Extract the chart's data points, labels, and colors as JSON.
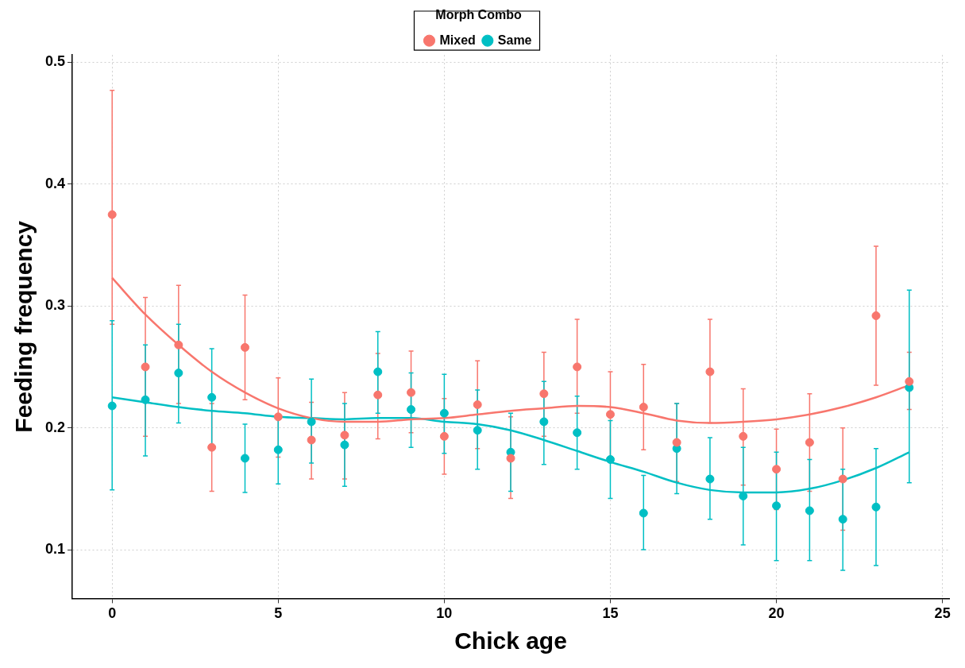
{
  "chart_data": {
    "type": "scatter",
    "xlabel": "Chick age",
    "ylabel": "Feeding frequency",
    "legend_title": "Morph Combo",
    "legend": "top",
    "grid": true,
    "marker": "circle",
    "line_style": "solid",
    "x": [
      0,
      1,
      2,
      3,
      4,
      5,
      6,
      7,
      8,
      9,
      10,
      11,
      12,
      13,
      14,
      15,
      16,
      17,
      18,
      19,
      20,
      21,
      22,
      23,
      24
    ],
    "xlim": [
      -1.2,
      25.2
    ],
    "xticks": [
      0,
      5,
      10,
      15,
      20,
      25
    ],
    "ylim": [
      0.06,
      0.506
    ],
    "yticks": [
      0.1,
      0.2,
      0.3,
      0.4,
      0.5
    ],
    "series": [
      {
        "name": "Mixed",
        "color": "#f8766d",
        "values": [
          0.375,
          0.25,
          0.268,
          0.184,
          0.266,
          0.209,
          0.19,
          0.194,
          0.227,
          0.229,
          0.193,
          0.219,
          0.175,
          0.228,
          0.25,
          0.211,
          0.217,
          0.188,
          0.246,
          0.193,
          0.166,
          0.188,
          0.158,
          0.292,
          0.238
        ],
        "errors": [
          [
            0.285,
            0.477
          ],
          [
            0.193,
            0.307
          ],
          [
            0.22,
            0.317
          ],
          [
            0.148,
            0.22
          ],
          [
            0.223,
            0.309
          ],
          [
            0.176,
            0.241
          ],
          [
            0.158,
            0.221
          ],
          [
            0.158,
            0.229
          ],
          [
            0.191,
            0.261
          ],
          [
            0.196,
            0.263
          ],
          [
            0.162,
            0.224
          ],
          [
            0.183,
            0.255
          ],
          [
            0.142,
            0.209
          ],
          [
            0.193,
            0.262
          ],
          [
            0.212,
            0.289
          ],
          [
            0.175,
            0.246
          ],
          [
            0.182,
            0.252
          ],
          [
            0.156,
            0.22
          ],
          [
            0.204,
            0.289
          ],
          [
            0.153,
            0.232
          ],
          [
            0.133,
            0.199
          ],
          [
            0.148,
            0.228
          ],
          [
            0.116,
            0.2
          ],
          [
            0.235,
            0.349
          ],
          [
            0.215,
            0.262
          ]
        ]
      },
      {
        "name": "Same",
        "color": "#00bfc4",
        "values": [
          0.218,
          0.223,
          0.245,
          0.225,
          0.175,
          0.182,
          0.205,
          0.186,
          0.246,
          0.215,
          0.212,
          0.198,
          0.18,
          0.205,
          0.196,
          0.174,
          0.13,
          0.183,
          0.158,
          0.144,
          0.136,
          0.132,
          0.125,
          0.135,
          0.233
        ],
        "errors": [
          [
            0.149,
            0.288
          ],
          [
            0.177,
            0.268
          ],
          [
            0.204,
            0.285
          ],
          [
            0.186,
            0.265
          ],
          [
            0.147,
            0.203
          ],
          [
            0.154,
            0.21
          ],
          [
            0.171,
            0.24
          ],
          [
            0.152,
            0.22
          ],
          [
            0.212,
            0.279
          ],
          [
            0.184,
            0.245
          ],
          [
            0.179,
            0.244
          ],
          [
            0.166,
            0.231
          ],
          [
            0.148,
            0.212
          ],
          [
            0.17,
            0.238
          ],
          [
            0.166,
            0.226
          ],
          [
            0.142,
            0.206
          ],
          [
            0.1,
            0.161
          ],
          [
            0.146,
            0.22
          ],
          [
            0.125,
            0.192
          ],
          [
            0.104,
            0.184
          ],
          [
            0.091,
            0.18
          ],
          [
            0.091,
            0.174
          ],
          [
            0.083,
            0.166
          ],
          [
            0.087,
            0.183
          ],
          [
            0.155,
            0.313
          ]
        ]
      },
      {
        "type": "line",
        "marker": "none",
        "color": "#f8766d",
        "values": [
          0.323,
          0.293,
          0.268,
          0.246,
          0.229,
          0.216,
          0.208,
          0.205,
          0.205,
          0.207,
          0.208,
          0.211,
          0.214,
          0.216,
          0.218,
          0.217,
          0.212,
          0.206,
          0.204,
          0.205,
          0.207,
          0.211,
          0.217,
          0.225,
          0.235
        ]
      },
      {
        "type": "line",
        "marker": "none",
        "color": "#00bfc4",
        "values": [
          0.225,
          0.221,
          0.217,
          0.214,
          0.212,
          0.209,
          0.208,
          0.207,
          0.208,
          0.208,
          0.205,
          0.203,
          0.198,
          0.19,
          0.181,
          0.172,
          0.164,
          0.155,
          0.149,
          0.147,
          0.147,
          0.15,
          0.157,
          0.167,
          0.18
        ]
      }
    ]
  }
}
